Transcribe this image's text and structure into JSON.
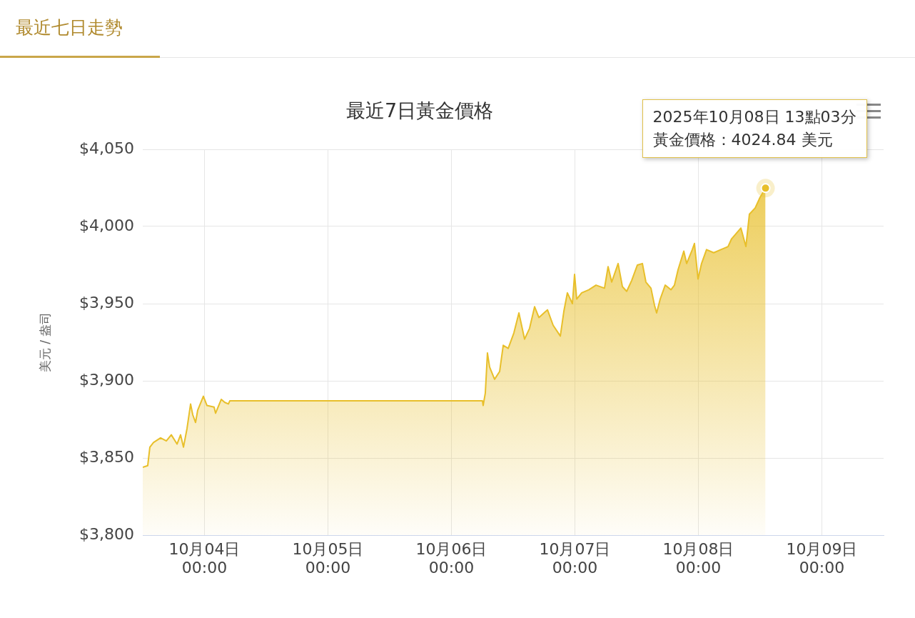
{
  "chart_data": {
    "type": "area",
    "title": "最近7日黃金價格",
    "subtitle": "最近七日走勢",
    "ylabel": "美元 / 盎司",
    "xlim": [
      "2025-10-03T12:00",
      "2025-10-09T12:00"
    ],
    "xticks": [
      {
        "value": "2025-10-04T00:00",
        "label": "10月04日 00:00"
      },
      {
        "value": "2025-10-05T00:00",
        "label": "10月05日 00:00"
      },
      {
        "value": "2025-10-06T00:00",
        "label": "10月06日 00:00"
      },
      {
        "value": "2025-10-07T00:00",
        "label": "10月07日 00:00"
      },
      {
        "value": "2025-10-08T00:00",
        "label": "10月08日 00:00"
      },
      {
        "value": "2025-10-09T00:00",
        "label": "10月09日 00:00"
      }
    ],
    "ylim": [
      3800,
      4050
    ],
    "yticks": [
      {
        "value": 3800,
        "label": "$3,800"
      },
      {
        "value": 3850,
        "label": "$3,850"
      },
      {
        "value": 3900,
        "label": "$3,900"
      },
      {
        "value": 3950,
        "label": "$3,950"
      },
      {
        "value": 4000,
        "label": "$4,000"
      },
      {
        "value": 4050,
        "label": "$4,050"
      }
    ],
    "grid": true,
    "legend": false,
    "marker": "none",
    "x": [
      "2025-10-03T12:00",
      "2025-10-03T12:58",
      "2025-10-03T13:23",
      "2025-10-03T14:05",
      "2025-10-03T15:28",
      "2025-10-03T16:35",
      "2025-10-03T17:33",
      "2025-10-03T18:40",
      "2025-10-03T19:21",
      "2025-10-03T19:55",
      "2025-10-03T20:36",
      "2025-10-03T21:18",
      "2025-10-03T21:43",
      "2025-10-03T22:16",
      "2025-10-03T22:41",
      "2025-10-03T23:47",
      "2025-10-04T00:29",
      "2025-10-04T01:52",
      "2025-10-04T02:09",
      "2025-10-04T03:16",
      "2025-10-04T03:57",
      "2025-10-04T04:39",
      "2025-10-04T04:55",
      "2025-10-06T06:02",
      "2025-10-06T06:10",
      "2025-10-06T06:35",
      "2025-10-06T07:00",
      "2025-10-06T07:25",
      "2025-10-06T08:23",
      "2025-10-06T09:22",
      "2025-10-06T10:04",
      "2025-10-06T11:02",
      "2025-10-06T12:08",
      "2025-10-06T13:07",
      "2025-10-06T14:13",
      "2025-10-06T15:11",
      "2025-10-06T16:10",
      "2025-10-06T17:00",
      "2025-10-06T18:40",
      "2025-10-06T19:46",
      "2025-10-06T21:10",
      "2025-10-06T21:51",
      "2025-10-06T22:32",
      "2025-10-06T23:31",
      "2025-10-06T23:56",
      "2025-10-07T00:21",
      "2025-10-07T01:19",
      "2025-10-07T02:42",
      "2025-10-07T04:06",
      "2025-10-07T05:45",
      "2025-10-07T06:27",
      "2025-10-07T07:09",
      "2025-10-07T08:24",
      "2025-10-07T09:14",
      "2025-10-07T10:04",
      "2025-10-07T11:02",
      "2025-10-07T12:08",
      "2025-10-07T13:07",
      "2025-10-07T13:48",
      "2025-10-07T14:47",
      "2025-10-07T15:28",
      "2025-10-07T15:53",
      "2025-10-07T16:35",
      "2025-10-07T17:33",
      "2025-10-07T18:40",
      "2025-10-07T19:21",
      "2025-10-07T20:03",
      "2025-10-07T21:10",
      "2025-10-07T21:43",
      "2025-10-07T22:49",
      "2025-10-07T23:14",
      "2025-10-07T23:56",
      "2025-10-08T00:37",
      "2025-10-08T01:35",
      "2025-10-08T02:59",
      "2025-10-08T04:22",
      "2025-10-08T05:46",
      "2025-10-08T06:27",
      "2025-10-08T08:16",
      "2025-10-08T09:14",
      "2025-10-08T09:55",
      "2025-10-08T11:02",
      "2025-10-08T12:00",
      "2025-10-08T13:03"
    ],
    "series": [
      {
        "color": "#e8bf2a",
        "values": [
          3844,
          3845,
          3857,
          3860,
          3863,
          3861,
          3865,
          3859,
          3865,
          3857,
          3869,
          3885,
          3878,
          3873,
          3881,
          3890,
          3884,
          3883,
          3879,
          3888,
          3886,
          3885,
          3887,
          3887,
          3884,
          3892,
          3918,
          3909,
          3901,
          3906,
          3923,
          3921,
          3931,
          3944,
          3927,
          3934,
          3948,
          3941,
          3946,
          3936,
          3929,
          3945,
          3957,
          3950,
          3969,
          3953,
          3957,
          3959,
          3962,
          3960,
          3974,
          3964,
          3976,
          3961,
          3958,
          3965,
          3975,
          3976,
          3964,
          3960,
          3949,
          3944,
          3953,
          3962,
          3959,
          3962,
          3972,
          3984,
          3976,
          3985,
          3989,
          3966,
          3976,
          3985,
          3983,
          3985,
          3987,
          3992,
          3999,
          3987,
          4008,
          4012,
          4019,
          4024.84
        ]
      }
    ],
    "annotations": [
      "2025年10月08日 13點03分",
      {
        "text": "黃金價格：4024.84 美元",
        "x": "2025-10-08T13:03",
        "y": 4024.84
      }
    ]
  }
}
